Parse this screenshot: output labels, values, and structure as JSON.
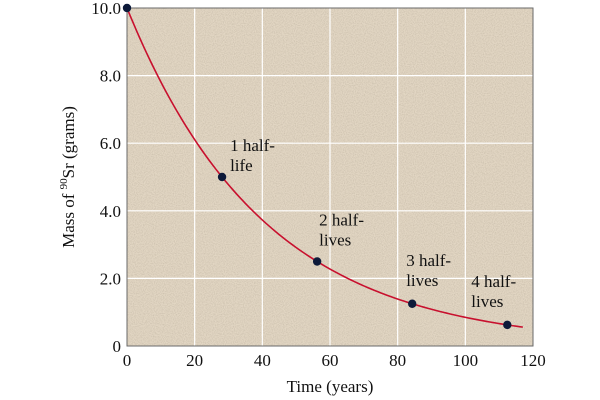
{
  "chart_data": {
    "type": "line",
    "title": "",
    "xlabel": "Time (years)",
    "ylabel": {
      "prefix": "Mass of ",
      "superscript": "90",
      "suffix": "Sr (grams)"
    },
    "xlim": [
      0,
      120
    ],
    "ylim": [
      0,
      10
    ],
    "x_ticks": [
      0,
      20,
      40,
      60,
      80,
      100,
      120
    ],
    "x_tick_labels": [
      "0",
      "20",
      "40",
      "60",
      "80",
      "100",
      "120"
    ],
    "y_ticks": [
      0,
      2,
      4,
      6,
      8,
      10
    ],
    "y_tick_labels": [
      "0",
      "2.0",
      "4.0",
      "6.0",
      "8.0",
      "10.0"
    ],
    "grid": true,
    "curve": {
      "model": "exponential decay",
      "initial_mass": 10.0,
      "half_life": 28.1,
      "x_range": [
        0,
        117
      ]
    },
    "points": [
      {
        "x": 0,
        "y": 10.0,
        "label": []
      },
      {
        "x": 28.1,
        "y": 5.0,
        "label": [
          "1 half-",
          "life"
        ]
      },
      {
        "x": 56.2,
        "y": 2.5,
        "label": [
          "2 half-",
          "lives"
        ]
      },
      {
        "x": 84.3,
        "y": 1.25,
        "label": [
          "3 half-",
          "lives"
        ]
      },
      {
        "x": 112.4,
        "y": 0.625,
        "label": [
          "4 half-",
          "lives"
        ]
      }
    ],
    "colors": {
      "plot_background": "#e2d6c3",
      "curve": "#c8102e",
      "points": "#0d1a3a",
      "grid": "#ffffff"
    }
  }
}
